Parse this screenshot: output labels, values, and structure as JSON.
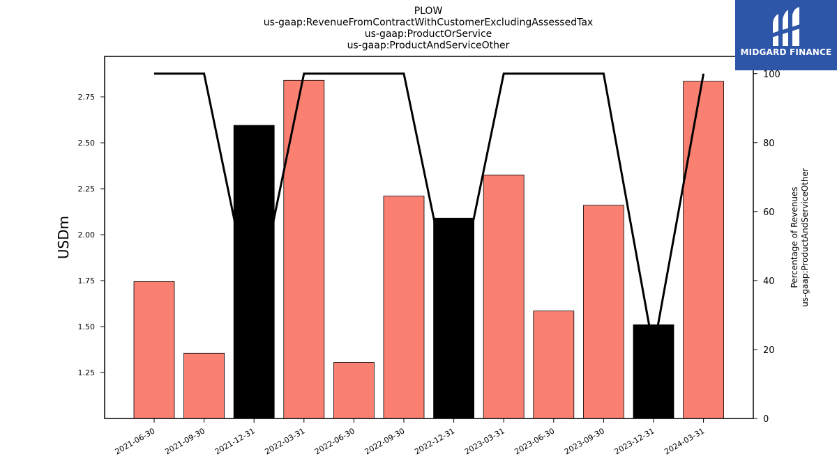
{
  "logo": {
    "text": "MIDGARD FINANCE"
  },
  "colors": {
    "positive": "#fa8072",
    "highlight": "#000000",
    "line": "#000000",
    "logo_bg": "#2d55a8"
  },
  "chart_data": {
    "type": "bar",
    "title": [
      "PLOW",
      "us-gaap:RevenueFromContractWithCustomerExcludingAssessedTax",
      "us-gaap:ProductOrService",
      "us-gaap:ProductAndServiceOther"
    ],
    "ylabel": "USDm",
    "y2label": [
      "Percentage of Revenues",
      "us-gaap:ProductAndServiceOther"
    ],
    "categories": [
      "2021-06-30",
      "2021-09-30",
      "2021-12-31",
      "2022-03-31",
      "2022-06-30",
      "2022-09-30",
      "2022-12-31",
      "2023-03-31",
      "2023-06-30",
      "2023-09-30",
      "2023-12-31",
      "2024-03-31"
    ],
    "values": [
      1.745,
      1.355,
      2.595,
      2.84,
      1.305,
      2.21,
      2.09,
      2.325,
      1.585,
      2.16,
      1.51,
      2.835
    ],
    "highlighted": [
      false,
      false,
      true,
      false,
      false,
      false,
      true,
      false,
      false,
      false,
      true,
      false
    ],
    "ylim": [
      1.0,
      2.97
    ],
    "yticks": [
      "1.25",
      "1.50",
      "1.75",
      "2.00",
      "2.25",
      "2.50",
      "2.75"
    ],
    "y2": {
      "values": [
        100,
        100,
        30,
        100,
        100,
        100,
        30,
        100,
        100,
        100,
        20,
        100
      ],
      "ylim": [
        0,
        105
      ],
      "ticks": [
        "0",
        "20",
        "40",
        "60",
        "80",
        "100"
      ]
    },
    "grid": false
  }
}
